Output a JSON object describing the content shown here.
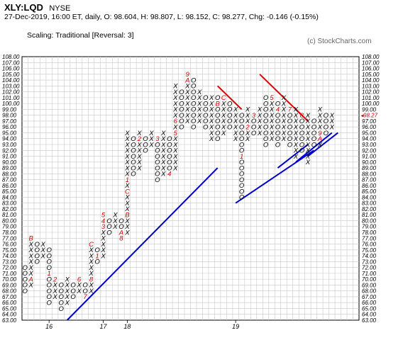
{
  "header": {
    "ticker": "XLY:LQD",
    "exchange": "NYSE",
    "ohlc": "27-Dec-2019, 16:00 ET, daily, O: 98.604, H: 98.807, L: 98.152, C: 98.277, Chg: -0.146 (-0.15%)",
    "scaling": "Scaling: Traditional [Reversal: 3]",
    "watermark": "(c) StockCharts.com"
  },
  "colors": {
    "x_mark": "#000000",
    "o_mark": "#000000",
    "month_digit": "#cc0000",
    "grid": "#c8c8c8",
    "trend_support": "#0000cc",
    "trend_resistance": "#dd0000",
    "last_price": "#cc0000"
  },
  "chart_data": {
    "type": "point-and-figure",
    "box_size": 1,
    "reversal": 3,
    "ylim": [
      63,
      108
    ],
    "y_ticks": [
      "63.00",
      "64.00",
      "65.00",
      "66.00",
      "67.00",
      "68.00",
      "69.00",
      "70.00",
      "71.00",
      "72.00",
      "73.00",
      "74.00",
      "75.00",
      "76.00",
      "77.00",
      "78.00",
      "79.00",
      "80.00",
      "81.00",
      "82.00",
      "83.00",
      "84.00",
      "85.00",
      "86.00",
      "87.00",
      "88.00",
      "89.00",
      "90.00",
      "91.00",
      "92.00",
      "93.00",
      "94.00",
      "95.00",
      "96.00",
      "97.00",
      "98.00",
      "99.00",
      "100.00",
      "101.00",
      "102.00",
      "103.00",
      "104.00",
      "105.00",
      "106.00",
      "107.00",
      "108.00"
    ],
    "last_price_label": "98.27",
    "x_labels": [
      {
        "col": 4,
        "text": "16"
      },
      {
        "col": 13,
        "text": "17"
      },
      {
        "col": 17,
        "text": "18"
      },
      {
        "col": 35,
        "text": "19"
      }
    ],
    "columns": [
      {
        "t": "O",
        "top": 72,
        "bottom": 68
      },
      {
        "t": "X",
        "top": 77,
        "bottom": 69,
        "marks": [
          {
            "at": 70,
            "m": "A"
          },
          {
            "at": 77,
            "m": "B"
          }
        ]
      },
      {
        "t": "O",
        "top": 76,
        "bottom": 73
      },
      {
        "t": "X",
        "top": 76,
        "bottom": 74
      },
      {
        "t": "O",
        "top": 75,
        "bottom": 66,
        "marks": [
          {
            "at": 71,
            "m": "1"
          }
        ]
      },
      {
        "t": "X",
        "top": 70,
        "bottom": 67,
        "marks": [
          {
            "at": 70,
            "m": "2"
          }
        ]
      },
      {
        "t": "O",
        "top": 69,
        "bottom": 65
      },
      {
        "t": "X",
        "top": 70,
        "bottom": 66
      },
      {
        "t": "O",
        "top": 69,
        "bottom": 67,
        "marks": [
          {
            "at": 70,
            "m": "3"
          }
        ]
      },
      {
        "t": "X",
        "top": 70,
        "bottom": 68,
        "marks": [
          {
            "at": 70,
            "m": "6"
          }
        ]
      },
      {
        "t": "O",
        "top": 69,
        "bottom": 67,
        "marks": [
          {
            "at": 67,
            "m": "7"
          }
        ]
      },
      {
        "t": "X",
        "top": 76,
        "bottom": 68,
        "marks": [
          {
            "at": 70,
            "m": "8"
          },
          {
            "at": 76,
            "m": "C"
          }
        ]
      },
      {
        "t": "O",
        "top": 75,
        "bottom": 73,
        "marks": [
          {
            "at": 74,
            "m": "1"
          }
        ]
      },
      {
        "t": "X",
        "top": 81,
        "bottom": 74,
        "marks": [
          {
            "at": 79,
            "m": "3"
          },
          {
            "at": 80,
            "m": "4"
          },
          {
            "at": 81,
            "m": "5"
          }
        ]
      },
      {
        "t": "O",
        "top": 80,
        "bottom": 78
      },
      {
        "t": "X",
        "top": 81,
        "bottom": 79
      },
      {
        "t": "O",
        "top": 80,
        "bottom": 77,
        "marks": [
          {
            "at": 78,
            "m": "A"
          },
          {
            "at": 77,
            "m": "8"
          }
        ]
      },
      {
        "t": "X",
        "top": 95,
        "bottom": 78,
        "marks": [
          {
            "at": 81,
            "m": "B"
          },
          {
            "at": 85,
            "m": "C"
          },
          {
            "at": 87,
            "m": "1"
          }
        ]
      },
      {
        "t": "O",
        "top": 94,
        "bottom": 88
      },
      {
        "t": "X",
        "top": 95,
        "bottom": 89,
        "marks": [
          {
            "at": 94,
            "m": "2"
          }
        ]
      },
      {
        "t": "O",
        "top": 94,
        "bottom": 92
      },
      {
        "t": "X",
        "top": 95,
        "bottom": 93
      },
      {
        "t": "O",
        "top": 94,
        "bottom": 87,
        "marks": [
          {
            "at": 94,
            "m": "3"
          }
        ]
      },
      {
        "t": "X",
        "top": 95,
        "bottom": 88
      },
      {
        "t": "O",
        "top": 94,
        "bottom": 88,
        "marks": [
          {
            "at": 88,
            "m": "4"
          }
        ]
      },
      {
        "t": "X",
        "top": 103,
        "bottom": 89,
        "marks": [
          {
            "at": 95,
            "m": "5"
          },
          {
            "at": 97,
            "m": "6"
          }
        ]
      },
      {
        "t": "O",
        "top": 102,
        "bottom": 96
      },
      {
        "t": "X",
        "top": 105,
        "bottom": 97,
        "marks": [
          {
            "at": 105,
            "m": "9"
          },
          {
            "at": 104,
            "m": "A"
          }
        ]
      },
      {
        "t": "O",
        "top": 104,
        "bottom": 96
      },
      {
        "t": "X",
        "top": 102,
        "bottom": 97
      },
      {
        "t": "O",
        "top": 101,
        "bottom": 96
      },
      {
        "t": "X",
        "top": 101,
        "bottom": 94
      },
      {
        "t": "O",
        "top": 101,
        "bottom": 94,
        "marks": [
          {
            "at": 100,
            "m": "B"
          }
        ]
      },
      {
        "t": "X",
        "top": 101,
        "bottom": 95,
        "marks": [
          {
            "at": 101,
            "m": "C"
          }
        ]
      },
      {
        "t": "O",
        "top": 100,
        "bottom": 96
      },
      {
        "t": "X",
        "top": 99,
        "bottom": 94
      },
      {
        "t": "O",
        "top": 98,
        "bottom": 84,
        "marks": [
          {
            "at": 91,
            "m": "1"
          }
        ]
      },
      {
        "t": "X",
        "top": 99,
        "bottom": 94,
        "marks": [
          {
            "at": 96,
            "m": "2"
          }
        ]
      },
      {
        "t": "O",
        "top": 98,
        "bottom": 95,
        "marks": [
          {
            "at": 98,
            "m": "3"
          }
        ]
      },
      {
        "t": "X",
        "top": 99,
        "bottom": 95
      },
      {
        "t": "O",
        "top": 101,
        "bottom": 93
      },
      {
        "t": "X",
        "top": 101,
        "bottom": 94,
        "marks": [
          {
            "at": 101,
            "m": "5"
          },
          {
            "at": 93,
            "m": "6"
          }
        ]
      },
      {
        "t": "O",
        "top": 100,
        "bottom": 93,
        "marks": [
          {
            "at": 99,
            "m": "4"
          }
        ]
      },
      {
        "t": "X",
        "top": 101,
        "bottom": 94
      },
      {
        "t": "O",
        "top": 99,
        "bottom": 93,
        "marks": [
          {
            "at": 99,
            "m": "7"
          }
        ]
      },
      {
        "t": "X",
        "top": 99,
        "bottom": 91
      },
      {
        "t": "O",
        "top": 98,
        "bottom": 92,
        "marks": [
          {
            "at": 98,
            "m": "8"
          }
        ]
      },
      {
        "t": "X",
        "top": 98,
        "bottom": 90
      },
      {
        "t": "O",
        "top": 97,
        "bottom": 93
      },
      {
        "t": "X",
        "top": 99,
        "bottom": 93,
        "marks": [
          {
            "at": 95,
            "m": "9"
          },
          {
            "at": 94,
            "m": "A"
          }
        ]
      },
      {
        "t": "O",
        "top": 98,
        "bottom": 95
      },
      {
        "t": "X",
        "top": 98,
        "bottom": 96
      }
    ],
    "trendlines": [
      {
        "kind": "support",
        "from": [
          7.5,
          63
        ],
        "to": [
          32.5,
          89
        ]
      },
      {
        "kind": "support",
        "from": [
          35.5,
          83
        ],
        "to": [
          48.5,
          92
        ]
      },
      {
        "kind": "support",
        "from": [
          42.5,
          89
        ],
        "to": [
          47.5,
          93
        ]
      },
      {
        "kind": "support",
        "from": [
          45.5,
          90
        ],
        "to": [
          51.5,
          95
        ]
      },
      {
        "kind": "support",
        "from": [
          47.5,
          91
        ],
        "to": [
          52.5,
          95
        ]
      },
      {
        "kind": "resistance",
        "from": [
          32.5,
          103
        ],
        "to": [
          36.5,
          99
        ]
      },
      {
        "kind": "resistance",
        "from": [
          39.5,
          105
        ],
        "to": [
          46.5,
          98
        ]
      },
      {
        "kind": "resistance",
        "from": [
          45.5,
          99
        ],
        "to": [
          47.5,
          97
        ]
      }
    ]
  }
}
